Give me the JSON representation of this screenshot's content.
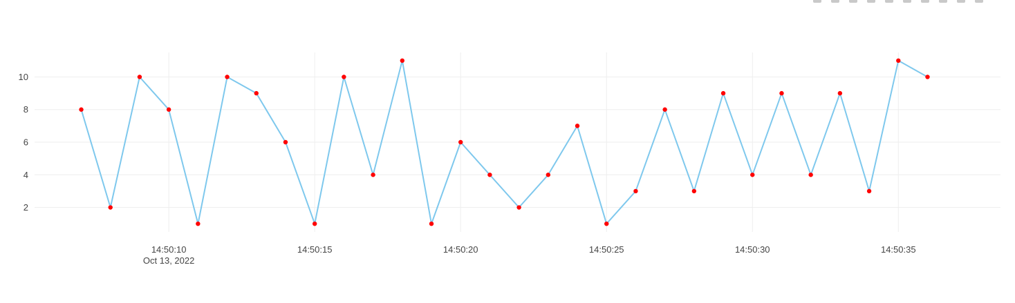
{
  "chart_data": {
    "type": "line",
    "x": [
      "14:50:07",
      "14:50:08",
      "14:50:09",
      "14:50:10",
      "14:50:11",
      "14:50:12",
      "14:50:13",
      "14:50:14",
      "14:50:15",
      "14:50:16",
      "14:50:17",
      "14:50:18",
      "14:50:19",
      "14:50:20",
      "14:50:21",
      "14:50:22",
      "14:50:23",
      "14:50:24",
      "14:50:25",
      "14:50:26",
      "14:50:27",
      "14:50:28",
      "14:50:29",
      "14:50:30",
      "14:50:31",
      "14:50:32",
      "14:50:33",
      "14:50:34",
      "14:50:35",
      "14:50:36"
    ],
    "date": "Oct 13, 2022",
    "series": [
      {
        "values": [
          8,
          2,
          10,
          8,
          1,
          10,
          9,
          6,
          1,
          10,
          4,
          11,
          1,
          6,
          4,
          2,
          4,
          7,
          1,
          3,
          8,
          3,
          9,
          4,
          9,
          4,
          9,
          3,
          11,
          10
        ],
        "line_color": "#7ec8ed",
        "marker_color": "#ff0000"
      }
    ],
    "xaxis": {
      "range": [
        "14:50:05.4",
        "14:50:38.5"
      ],
      "tick_labels": [
        "14:50:10",
        "14:50:15",
        "14:50:20",
        "14:50:25",
        "14:50:30",
        "14:50:35"
      ],
      "first_tick_sublabel": "Oct 13, 2022"
    },
    "yaxis": {
      "range": [
        0.5,
        11.5
      ],
      "tick_values": [
        2,
        4,
        6,
        8,
        10
      ],
      "tick_labels": [
        "2",
        "4",
        "6",
        "8",
        "10"
      ]
    },
    "grid": true,
    "legend": "none",
    "title": "",
    "xlabel": "",
    "ylabel": ""
  },
  "modebar": {
    "icons": [
      "camera-icon",
      "zoom-icon",
      "pan-icon",
      "box-select-icon",
      "lasso-icon",
      "zoom-in-icon",
      "zoom-out-icon",
      "autoscale-icon",
      "reset-axes-icon",
      "plotly-logo-icon"
    ]
  }
}
